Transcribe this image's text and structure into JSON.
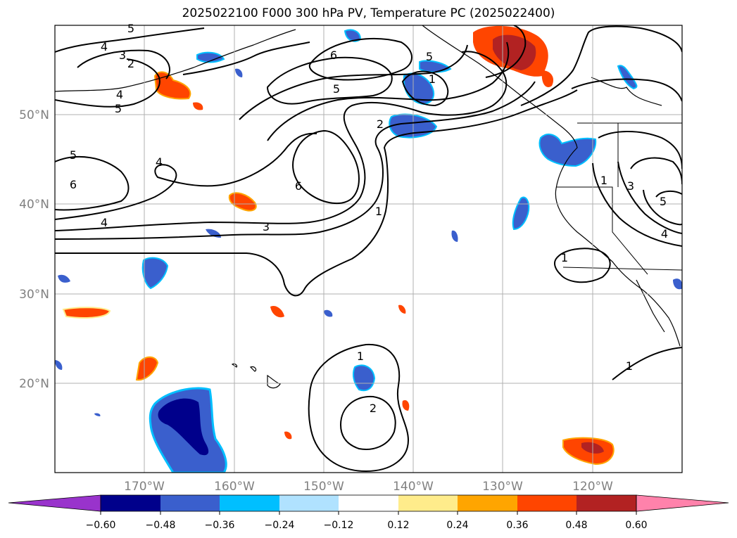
{
  "title": "2025022100 F000 300 hPa PV, Temperature PC (2025022400)",
  "lon_labels": [
    "170°W",
    "160°W",
    "150°W",
    "140°W",
    "130°W",
    "120°W"
  ],
  "lat_labels": [
    "50°N",
    "40°N",
    "30°N",
    "20°N"
  ],
  "colorbar": {
    "tick_labels": [
      "−0.60",
      "−0.48",
      "−0.36",
      "−0.24",
      "−0.12",
      "0.12",
      "0.24",
      "0.36",
      "0.48",
      "0.60"
    ],
    "colors": [
      "#9933cc",
      "#00008b",
      "#3a5fcd",
      "#00bfff",
      "#b0e2ff",
      "#ffffff",
      "#ffec8b",
      "#ffa500",
      "#ff4500",
      "#b22222",
      "#ff82ab"
    ]
  },
  "contour_labels": [
    "5",
    "4",
    "3",
    "2",
    "4",
    "5",
    "6",
    "5",
    "2",
    "5",
    "4",
    "6",
    "4",
    "6",
    "3",
    "1",
    "5",
    "1",
    "3",
    "5",
    "4",
    "1",
    "1",
    "1",
    "2",
    "1"
  ]
}
